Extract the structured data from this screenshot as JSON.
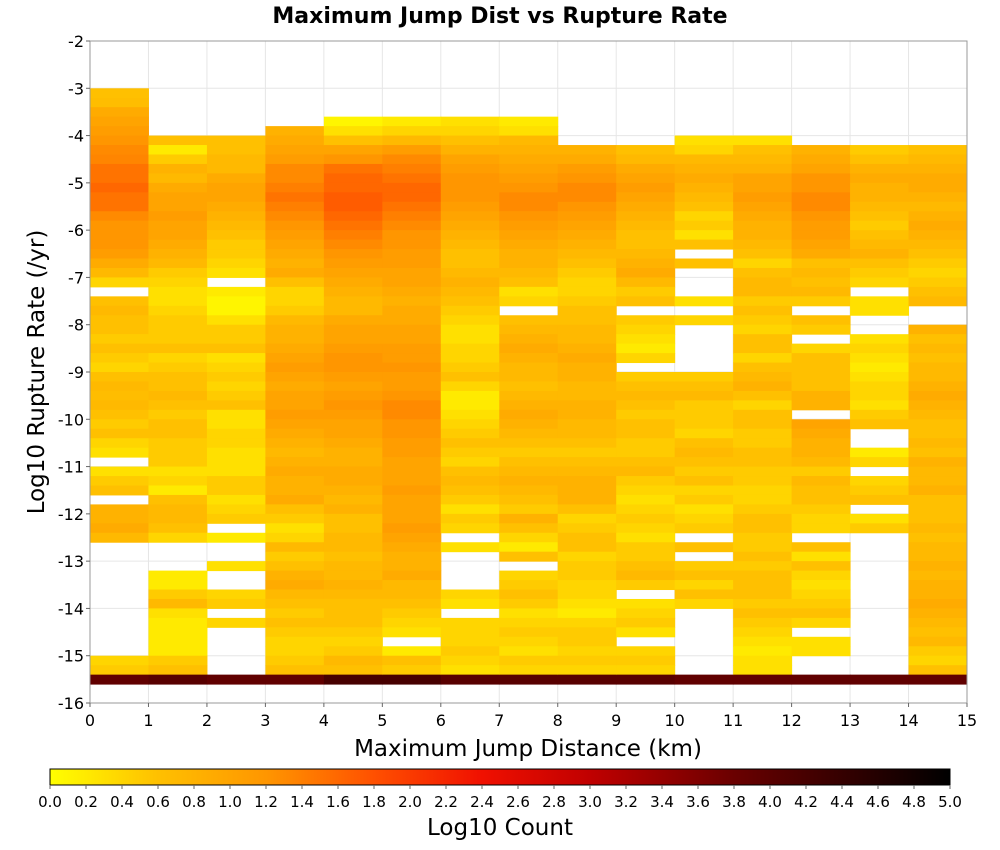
{
  "chart_data": {
    "type": "heatmap",
    "title": "Maximum Jump Dist vs Rupture Rate",
    "xlabel": "Maximum Jump Distance (km)",
    "ylabel": "Log10 Rupture Rate (/yr)",
    "xlim": [
      0,
      15
    ],
    "ylim": [
      -16,
      -2
    ],
    "x_bin_width": 1,
    "y_bin_width": 0.2,
    "y_top": -3,
    "x_ticks": [
      "0",
      "1",
      "2",
      "3",
      "4",
      "5",
      "6",
      "7",
      "8",
      "9",
      "10",
      "11",
      "12",
      "13",
      "14",
      "15"
    ],
    "y_ticks": [
      "-2",
      "-3",
      "-4",
      "-5",
      "-6",
      "-7",
      "-8",
      "-9",
      "-10",
      "-11",
      "-12",
      "-13",
      "-14",
      "-15",
      "-16"
    ],
    "colorbar": {
      "label": "Log10 Count",
      "range": [
        0,
        5
      ],
      "ticks": [
        "0.0",
        "0.2",
        "0.4",
        "0.6",
        "0.8",
        "1.0",
        "1.2",
        "1.4",
        "1.6",
        "1.8",
        "2.0",
        "2.2",
        "2.4",
        "2.6",
        "2.8",
        "3.0",
        "3.2",
        "3.4",
        "3.6",
        "3.8",
        "4.0",
        "4.2",
        "4.4",
        "4.6",
        "4.8",
        "5.0"
      ],
      "stops": [
        {
          "v": 0.0,
          "color": "#ffff00"
        },
        {
          "v": 0.6,
          "color": "#ffc000"
        },
        {
          "v": 1.2,
          "color": "#ff9600"
        },
        {
          "v": 1.8,
          "color": "#ff5000"
        },
        {
          "v": 2.4,
          "color": "#f01000"
        },
        {
          "v": 3.0,
          "color": "#c00000"
        },
        {
          "v": 3.8,
          "color": "#6a0000"
        },
        {
          "v": 5.0,
          "color": "#000000"
        }
      ]
    },
    "columns": [
      [
        0.6,
        0.65,
        0.9,
        1.0,
        1.1,
        1.2,
        1.3,
        1.35,
        1.5,
        1.5,
        1.6,
        1.5,
        1.5,
        1.3,
        1.2,
        1.2,
        1.2,
        1.1,
        0.9,
        0.7,
        0.4,
        null,
        0.6,
        0.7,
        0.6,
        0.6,
        0.5,
        0.6,
        0.5,
        0.4,
        0.6,
        0.7,
        0.65,
        0.7,
        0.6,
        0.5,
        0.6,
        0.4,
        0.3,
        null,
        0.3,
        0.5,
        0.6,
        null,
        0.8,
        0.8,
        0.9,
        0.7,
        null,
        null,
        null,
        null,
        null,
        null,
        null,
        null,
        null,
        null,
        null,
        null,
        0.4,
        0.5,
        3.9
      ],
      [
        null,
        null,
        null,
        null,
        null,
        0.6,
        0.2,
        0.5,
        0.8,
        0.7,
        0.9,
        1.0,
        1.0,
        1.1,
        1.0,
        1.0,
        0.9,
        0.8,
        0.7,
        0.5,
        0.4,
        0.3,
        0.3,
        0.4,
        0.5,
        0.5,
        0.5,
        0.6,
        0.4,
        0.5,
        0.6,
        0.6,
        0.7,
        0.6,
        0.5,
        0.6,
        0.6,
        0.5,
        0.5,
        0.5,
        0.3,
        0.4,
        0.2,
        0.6,
        0.7,
        0.7,
        0.6,
        0.4,
        null,
        null,
        null,
        0.2,
        0.2,
        0.5,
        0.7,
        0.3,
        0.2,
        0.2,
        0.2,
        0.2,
        0.5,
        0.6,
        4.0
      ],
      [
        null,
        null,
        null,
        null,
        null,
        0.6,
        0.6,
        0.7,
        0.7,
        0.9,
        1.0,
        1.0,
        0.9,
        0.8,
        0.7,
        0.6,
        0.5,
        0.5,
        0.4,
        0.3,
        null,
        0.2,
        0.1,
        0.1,
        0.3,
        0.5,
        0.5,
        0.6,
        0.3,
        0.4,
        0.5,
        0.4,
        0.5,
        0.6,
        0.3,
        0.3,
        0.4,
        0.4,
        0.3,
        0.3,
        0.3,
        0.5,
        0.5,
        0.3,
        0.4,
        0.5,
        null,
        0.2,
        null,
        null,
        0.3,
        null,
        null,
        0.4,
        0.5,
        null,
        0.4,
        null,
        null,
        null,
        null,
        null,
        3.9
      ],
      [
        null,
        null,
        null,
        null,
        0.8,
        0.9,
        1.0,
        1.1,
        1.3,
        1.3,
        1.4,
        1.5,
        1.4,
        1.3,
        1.2,
        1.1,
        1.0,
        0.9,
        0.8,
        0.9,
        0.6,
        0.4,
        0.4,
        0.5,
        0.7,
        0.8,
        0.8,
        0.9,
        1.0,
        1.1,
        1.0,
        0.9,
        1.0,
        1.0,
        1.1,
        1.0,
        0.9,
        0.8,
        0.7,
        0.8,
        0.9,
        0.8,
        0.8,
        0.9,
        0.6,
        0.5,
        0.3,
        0.4,
        0.7,
        0.5,
        0.6,
        0.8,
        0.9,
        0.7,
        0.6,
        0.5,
        0.6,
        0.5,
        0.4,
        0.4,
        0.5,
        0.6,
        3.9
      ],
      [
        null,
        null,
        null,
        0.1,
        0.3,
        0.6,
        1.0,
        1.2,
        1.5,
        1.6,
        1.6,
        1.7,
        1.7,
        1.6,
        1.5,
        1.4,
        1.3,
        1.2,
        1.1,
        1.0,
        0.9,
        0.8,
        0.7,
        0.7,
        0.9,
        1.0,
        1.0,
        1.1,
        1.2,
        1.2,
        1.1,
        1.0,
        1.1,
        1.2,
        1.1,
        1.0,
        1.0,
        0.9,
        0.8,
        0.8,
        0.9,
        0.9,
        0.8,
        0.7,
        0.8,
        0.6,
        0.6,
        0.7,
        0.7,
        0.6,
        0.7,
        0.7,
        0.8,
        0.7,
        0.6,
        0.6,
        0.6,
        0.5,
        0.4,
        0.5,
        0.7,
        0.6,
        4.2
      ],
      [
        null,
        null,
        null,
        0.2,
        0.4,
        0.7,
        1.1,
        1.3,
        1.4,
        1.5,
        1.6,
        1.6,
        1.5,
        1.4,
        1.3,
        1.2,
        1.2,
        1.1,
        1.1,
        1.0,
        1.0,
        0.9,
        0.8,
        0.9,
        0.9,
        1.0,
        1.0,
        1.1,
        1.1,
        1.2,
        1.1,
        1.1,
        1.2,
        1.3,
        1.3,
        1.2,
        1.2,
        1.1,
        1.1,
        1.0,
        1.0,
        1.0,
        1.1,
        1.0,
        1.0,
        1.0,
        1.1,
        1.0,
        0.9,
        0.8,
        0.8,
        0.9,
        0.7,
        0.7,
        0.6,
        0.5,
        0.4,
        0.3,
        null,
        0.2,
        0.6,
        0.5,
        4.2
      ],
      [
        null,
        null,
        null,
        0.3,
        0.4,
        0.6,
        0.8,
        1.0,
        1.1,
        1.2,
        1.2,
        1.2,
        1.1,
        1.0,
        0.9,
        0.8,
        0.7,
        0.6,
        0.6,
        0.7,
        0.8,
        0.7,
        0.6,
        0.5,
        0.4,
        0.3,
        0.3,
        0.4,
        0.4,
        0.5,
        0.6,
        0.4,
        0.2,
        0.2,
        0.3,
        0.4,
        0.5,
        0.6,
        0.5,
        0.4,
        0.6,
        0.7,
        0.6,
        0.5,
        0.3,
        0.5,
        0.4,
        null,
        0.3,
        null,
        null,
        null,
        null,
        0.4,
        0.3,
        null,
        0.4,
        0.4,
        0.4,
        0.5,
        0.4,
        0.3,
        4.0
      ],
      [
        null,
        null,
        null,
        0.2,
        0.3,
        0.7,
        0.8,
        0.9,
        1.0,
        1.1,
        1.2,
        1.3,
        1.3,
        1.2,
        1.1,
        1.0,
        0.9,
        0.8,
        0.8,
        0.7,
        0.6,
        0.3,
        0.4,
        null,
        0.6,
        0.7,
        0.8,
        0.9,
        0.8,
        0.7,
        0.7,
        0.6,
        0.7,
        0.8,
        0.9,
        0.8,
        0.7,
        0.6,
        0.5,
        0.6,
        0.7,
        0.8,
        0.7,
        0.6,
        0.5,
        0.8,
        0.6,
        0.4,
        0.2,
        0.6,
        null,
        0.4,
        0.5,
        0.6,
        0.5,
        0.3,
        0.4,
        0.5,
        0.4,
        0.3,
        0.5,
        0.4,
        4.0
      ],
      [
        null,
        null,
        null,
        null,
        null,
        null,
        0.8,
        0.9,
        1.1,
        1.2,
        1.3,
        1.3,
        1.2,
        1.1,
        1.0,
        0.9,
        0.8,
        0.7,
        0.6,
        0.5,
        0.4,
        0.4,
        0.5,
        0.6,
        0.6,
        0.7,
        0.7,
        0.8,
        0.9,
        0.8,
        0.8,
        0.7,
        0.7,
        0.8,
        0.8,
        0.7,
        0.7,
        0.6,
        0.5,
        0.6,
        0.7,
        0.8,
        0.8,
        0.8,
        0.6,
        0.4,
        0.5,
        0.6,
        0.6,
        0.4,
        0.5,
        0.5,
        0.4,
        0.4,
        0.3,
        0.2,
        0.4,
        0.5,
        0.5,
        0.4,
        0.5,
        0.4,
        4.0
      ],
      [
        null,
        null,
        null,
        null,
        null,
        null,
        0.6,
        0.7,
        0.9,
        1.0,
        1.1,
        1.0,
        0.9,
        0.8,
        0.7,
        0.6,
        0.6,
        0.7,
        0.8,
        0.9,
        0.7,
        0.5,
        0.6,
        null,
        0.5,
        0.4,
        0.3,
        0.2,
        0.4,
        null,
        0.5,
        0.6,
        0.7,
        0.6,
        0.5,
        0.6,
        0.6,
        0.5,
        0.5,
        0.6,
        0.7,
        0.5,
        0.4,
        0.3,
        0.4,
        0.5,
        0.4,
        0.3,
        0.5,
        0.5,
        0.6,
        0.7,
        0.5,
        null,
        0.3,
        0.4,
        0.5,
        0.3,
        null,
        0.4,
        0.5,
        0.4,
        4.0
      ],
      [
        null,
        null,
        null,
        null,
        null,
        0.3,
        0.4,
        0.7,
        0.8,
        0.9,
        0.8,
        0.7,
        0.6,
        0.4,
        0.5,
        0.3,
        0.6,
        null,
        0.6,
        null,
        null,
        null,
        0.3,
        null,
        0.4,
        null,
        null,
        null,
        null,
        null,
        0.5,
        0.6,
        0.7,
        0.5,
        0.5,
        0.5,
        0.4,
        0.6,
        0.7,
        0.6,
        0.5,
        0.6,
        0.4,
        0.5,
        0.3,
        0.4,
        0.5,
        null,
        0.6,
        null,
        0.5,
        0.6,
        0.4,
        0.6,
        0.4,
        null,
        null,
        null,
        null,
        null,
        null,
        null,
        3.9
      ],
      [
        null,
        null,
        null,
        null,
        null,
        0.3,
        0.6,
        0.7,
        0.8,
        1.0,
        1.0,
        1.1,
        1.0,
        0.9,
        0.8,
        0.8,
        0.7,
        0.6,
        0.4,
        0.6,
        0.7,
        0.7,
        0.5,
        0.6,
        0.5,
        0.4,
        0.6,
        0.6,
        0.4,
        0.6,
        0.7,
        0.8,
        0.6,
        0.4,
        0.6,
        0.6,
        0.5,
        0.5,
        0.6,
        0.6,
        0.5,
        0.5,
        0.4,
        0.4,
        0.5,
        0.6,
        0.6,
        0.5,
        0.5,
        0.6,
        0.5,
        0.6,
        0.6,
        0.6,
        0.5,
        0.6,
        0.5,
        0.4,
        0.3,
        0.2,
        0.3,
        0.3,
        3.9
      ],
      [
        null,
        null,
        null,
        null,
        null,
        null,
        0.8,
        0.9,
        1.0,
        1.2,
        1.2,
        1.3,
        1.3,
        1.2,
        1.1,
        1.1,
        1.0,
        0.9,
        0.6,
        0.7,
        0.6,
        0.7,
        0.5,
        null,
        0.6,
        0.5,
        null,
        0.4,
        0.6,
        0.6,
        0.6,
        0.6,
        0.8,
        0.8,
        null,
        1.0,
        0.9,
        0.8,
        0.8,
        0.7,
        0.5,
        0.7,
        0.6,
        0.6,
        0.5,
        0.4,
        0.4,
        null,
        0.6,
        0.3,
        0.6,
        0.4,
        0.3,
        0.4,
        0.5,
        0.6,
        0.4,
        null,
        0.3,
        0.3,
        null,
        null,
        3.9
      ],
      [
        null,
        null,
        null,
        null,
        null,
        null,
        0.5,
        0.6,
        0.8,
        0.9,
        0.8,
        0.8,
        0.7,
        0.6,
        0.5,
        0.6,
        0.7,
        0.8,
        0.6,
        0.5,
        0.4,
        null,
        0.3,
        0.3,
        null,
        null,
        0.3,
        0.4,
        0.3,
        0.2,
        0.3,
        0.4,
        0.4,
        0.3,
        0.5,
        0.6,
        null,
        null,
        0.2,
        0.4,
        null,
        0.4,
        0.5,
        0.6,
        null,
        0.3,
        0.5,
        null,
        null,
        null,
        null,
        null,
        null,
        null,
        null,
        null,
        null,
        null,
        null,
        null,
        null,
        null,
        3.9
      ],
      [
        null,
        null,
        null,
        null,
        null,
        null,
        0.6,
        0.7,
        0.8,
        0.9,
        0.9,
        0.8,
        0.7,
        0.8,
        0.9,
        0.8,
        0.7,
        0.6,
        0.5,
        0.4,
        0.5,
        0.6,
        0.7,
        null,
        null,
        0.8,
        0.6,
        0.7,
        0.6,
        0.7,
        0.7,
        0.8,
        0.9,
        0.8,
        0.7,
        0.6,
        0.6,
        0.7,
        0.6,
        0.8,
        0.7,
        0.7,
        0.8,
        0.6,
        0.6,
        0.6,
        0.7,
        0.6,
        0.7,
        0.7,
        0.8,
        0.7,
        0.8,
        0.8,
        0.9,
        0.8,
        0.7,
        0.6,
        0.7,
        0.5,
        0.4,
        0.6,
        3.9
      ]
    ]
  }
}
